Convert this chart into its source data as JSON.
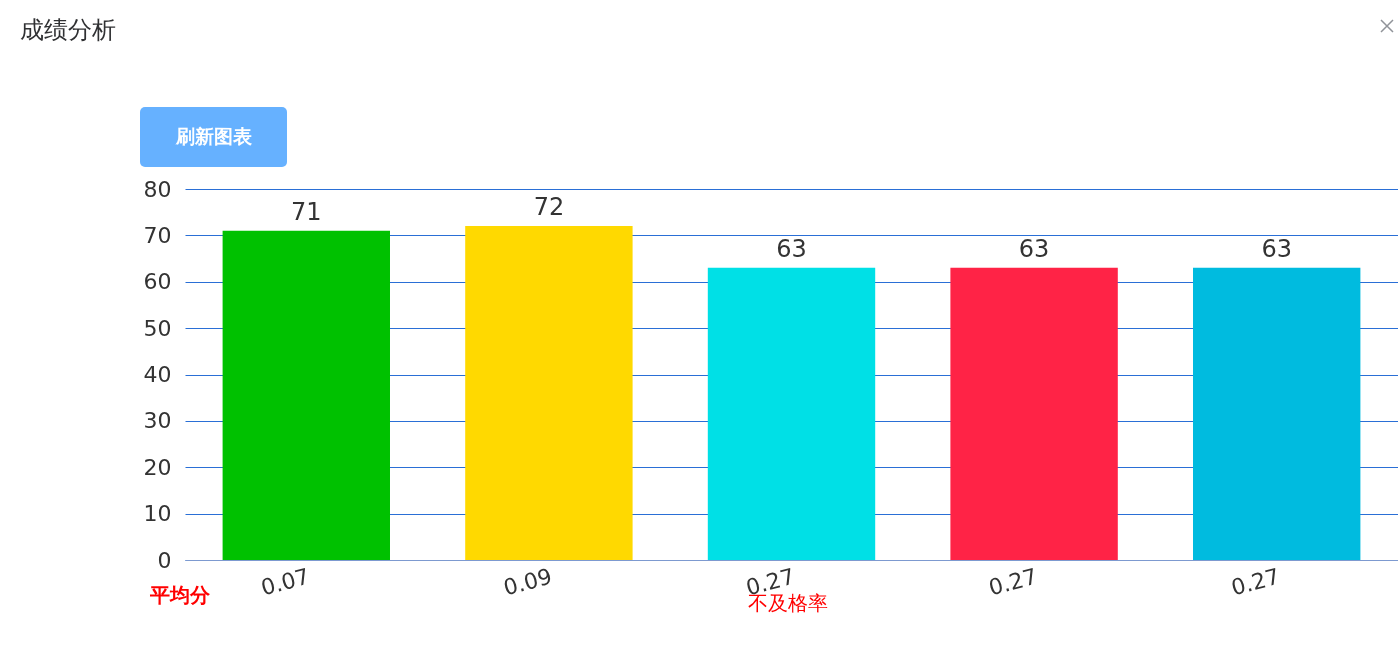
{
  "chart_data": {
    "type": "bar",
    "title": "成绩分析",
    "categories": [
      "0.07",
      "0.09",
      "0.27",
      "0.27",
      "0.27"
    ],
    "values": [
      71,
      72,
      63,
      63,
      63
    ],
    "colors": [
      "#00c100",
      "#ffd900",
      "#00e0e6",
      "#ff2346",
      "#00bbdf"
    ],
    "ylim": [
      0,
      80
    ],
    "yticks": [
      0,
      10,
      20,
      30,
      40,
      50,
      60,
      70,
      80
    ],
    "grid": "y",
    "data_labels": true,
    "annotations": [
      "刷新图表",
      "平均分",
      "不及格率"
    ]
  }
}
